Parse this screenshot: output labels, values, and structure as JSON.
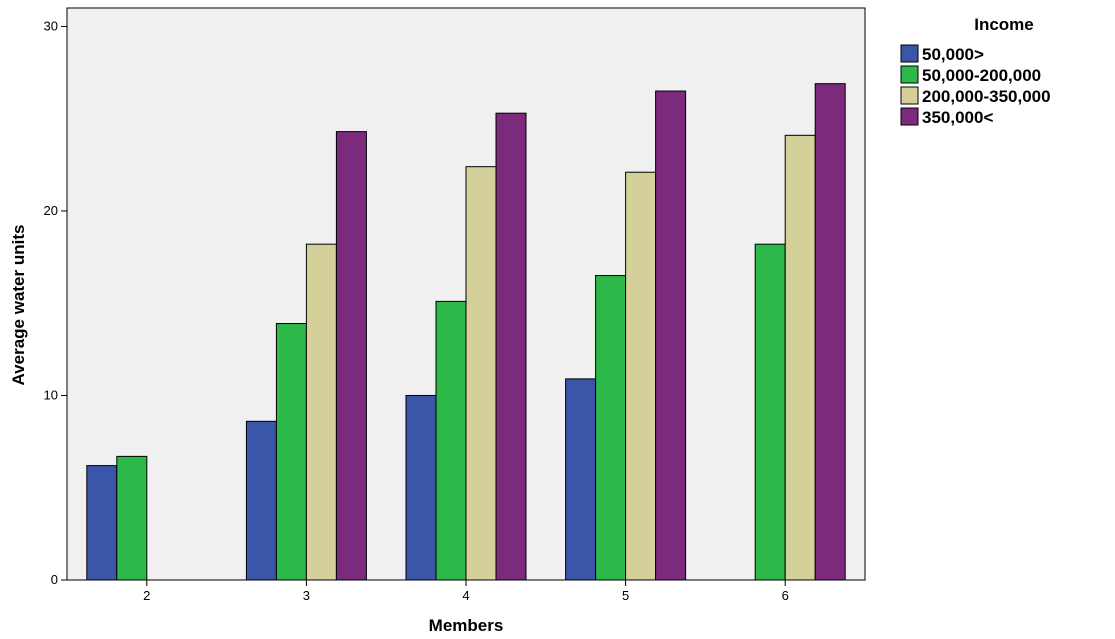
{
  "chart_data": {
    "type": "bar",
    "xlabel": "Members",
    "ylabel": "Average water units",
    "categories": [
      "2",
      "3",
      "4",
      "5",
      "6"
    ],
    "ylim": [
      0,
      31
    ],
    "yticks": [
      0,
      10,
      20,
      30
    ],
    "grid": false,
    "legend": {
      "title": "Income",
      "placement": "right"
    },
    "series": [
      {
        "name": "50,000>",
        "color": "#3b55a8",
        "values": [
          6.2,
          8.6,
          10.0,
          10.9,
          null
        ]
      },
      {
        "name": "50,000-200,000",
        "color": "#2db84a",
        "values": [
          6.7,
          13.9,
          15.1,
          16.5,
          18.2
        ]
      },
      {
        "name": "200,000-350,000",
        "color": "#d4d09a",
        "values": [
          null,
          18.2,
          22.4,
          22.1,
          24.1
        ]
      },
      {
        "name": "350,000<",
        "color": "#7b2a7c",
        "values": [
          null,
          24.3,
          25.3,
          26.5,
          26.9
        ]
      }
    ],
    "plot_background": "#f0f0f0"
  }
}
